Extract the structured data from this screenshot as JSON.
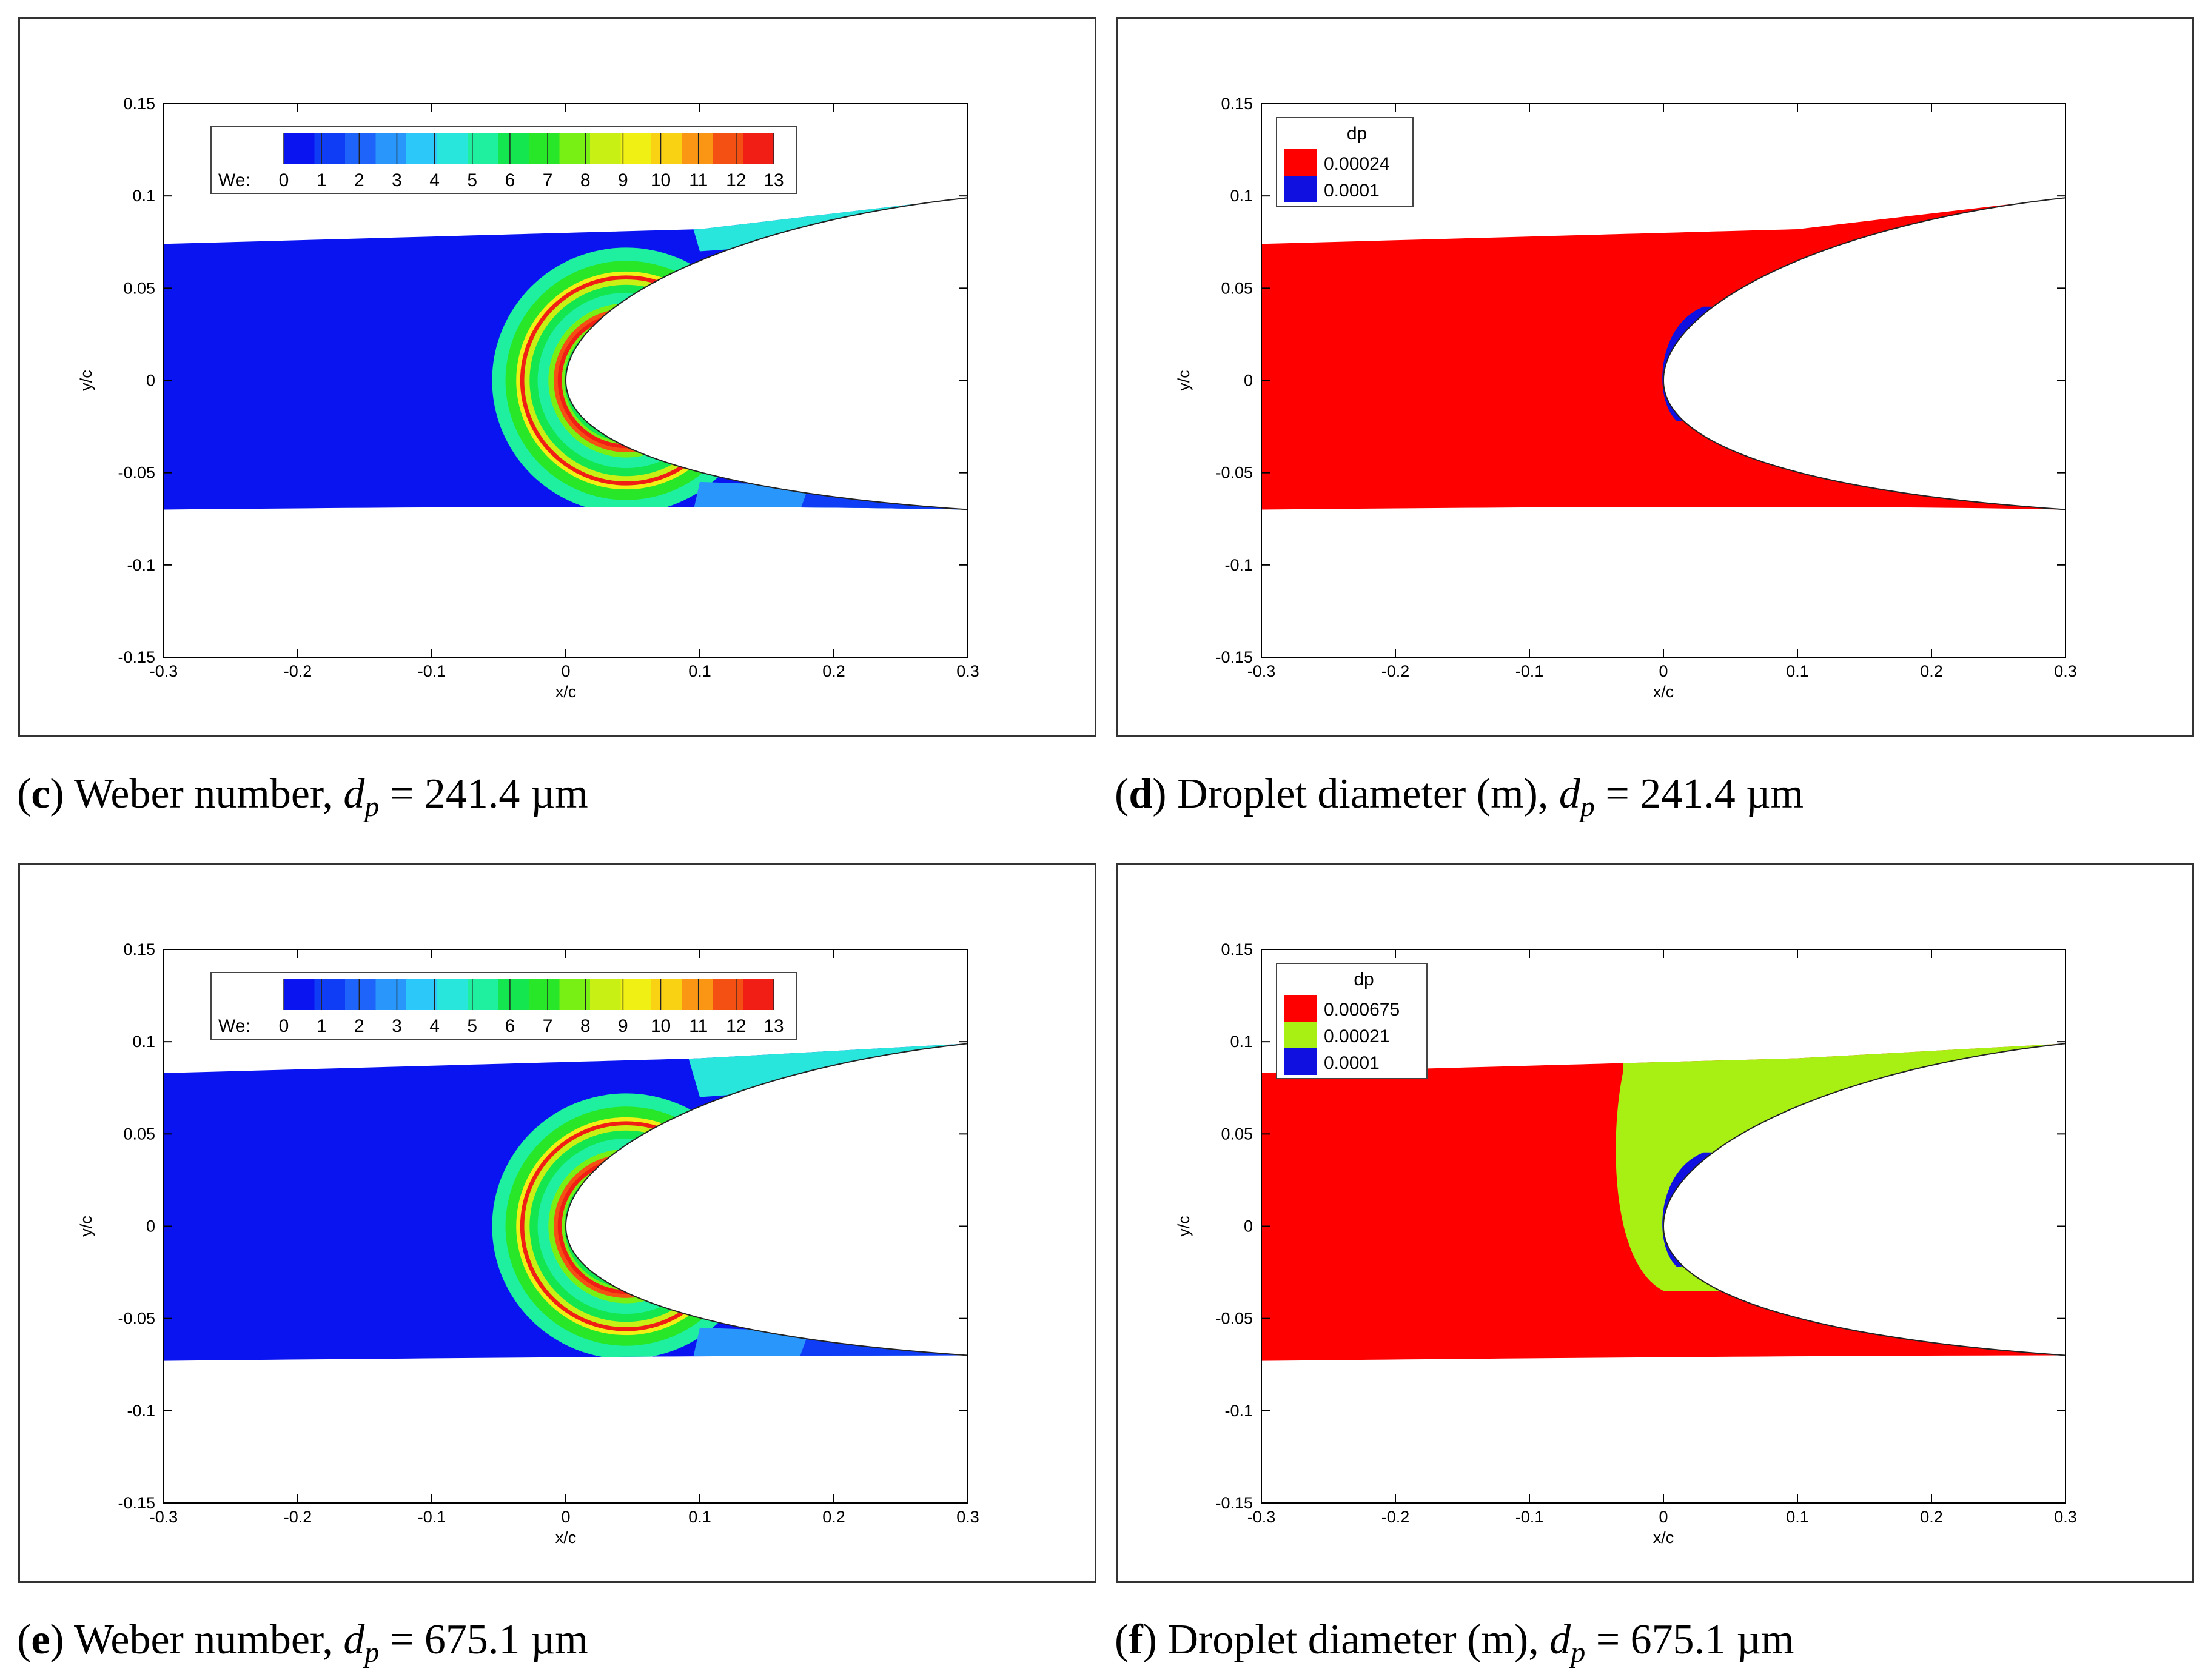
{
  "colors": {
    "frame": "#333333",
    "weber_scale": [
      "#0a14f0",
      "#0f3cf5",
      "#1e64fa",
      "#2896fa",
      "#2dc8fa",
      "#28e6dc",
      "#1ef0a0",
      "#14e650",
      "#28e628",
      "#78f014",
      "#c8f014",
      "#f0f014",
      "#fad214",
      "#fa9614",
      "#f55014",
      "#f01e14"
    ],
    "dp_red": "#ff0000",
    "dp_blue": "#1010e0",
    "dp_green": "#00ff00",
    "dp_lime": "#a8f014",
    "dp_cyan": "#14f0a0"
  },
  "captions": [
    {
      "letter": "c",
      "open": "(",
      "close": ")",
      "text": "Weber number,",
      "var": "d",
      "sub": "p",
      "value": "= 241.4 µm"
    },
    {
      "letter": "d",
      "open": "(",
      "close": ")",
      "text": "Droplet diameter (m),",
      "var": "d",
      "sub": "p",
      "value": "= 241.4 µm"
    },
    {
      "letter": "e",
      "open": "(",
      "close": ")",
      "text": "Weber number,",
      "var": "d",
      "sub": "p",
      "value": "= 675.1 µm"
    },
    {
      "letter": "f",
      "open": "(",
      "close": ")",
      "text": "Droplet diameter (m),",
      "var": "d",
      "sub": "p",
      "value": "= 675.1 µm"
    }
  ],
  "chart_data": [
    {
      "type": "heatmap",
      "panel": "c",
      "xlabel": "x/c",
      "ylabel": "y/c",
      "xlim": [
        -0.3,
        0.3
      ],
      "ylim": [
        -0.15,
        0.15
      ],
      "xticks": [
        "-0.3",
        "-0.2",
        "-0.1",
        "0",
        "0.1",
        "0.2",
        "0.3"
      ],
      "yticks": [
        "0.15",
        "0.1",
        "0.05",
        "0",
        "-0.05",
        "-0.1",
        "-0.15"
      ],
      "legend": {
        "title": "We:",
        "levels": [
          "0",
          "1",
          "2",
          "3",
          "4",
          "5",
          "6",
          "7",
          "8",
          "9",
          "10",
          "11",
          "12",
          "13"
        ]
      },
      "variable": "Weber number",
      "domain": {
        "x_start": -0.3,
        "top_y_at_start": 0.074,
        "bottom_y_at_start": -0.07
      },
      "airfoil": {
        "leading_edge_x": 0.0,
        "trailing_top": [
          0.3,
          0.099
        ],
        "trailing_bottom": [
          0.3,
          -0.07
        ]
      },
      "max_we_near_leading_edge": 13
    },
    {
      "type": "heatmap",
      "panel": "d",
      "xlabel": "x/c",
      "ylabel": "y/c",
      "xlim": [
        -0.3,
        0.3
      ],
      "ylim": [
        -0.15,
        0.15
      ],
      "xticks": [
        "-0.3",
        "-0.2",
        "-0.1",
        "0",
        "0.1",
        "0.2",
        "0.3"
      ],
      "yticks": [
        "0.15",
        "0.1",
        "0.05",
        "0",
        "-0.05",
        "-0.1",
        "-0.15"
      ],
      "legend": {
        "title": "dp",
        "entries": [
          {
            "label": "0.00024",
            "color": "#ff0000"
          },
          {
            "label": "0.0001",
            "color": "#1010e0"
          }
        ]
      },
      "regions": [
        {
          "value": 0.00024,
          "description": "main droplet field"
        },
        {
          "value": 0.0001,
          "description": "thin layer at leading edge"
        }
      ]
    },
    {
      "type": "heatmap",
      "panel": "e",
      "xlabel": "x/c",
      "ylabel": "y/c",
      "xlim": [
        -0.3,
        0.3
      ],
      "ylim": [
        -0.15,
        0.15
      ],
      "xticks": [
        "-0.3",
        "-0.2",
        "-0.1",
        "0",
        "0.1",
        "0.2",
        "0.3"
      ],
      "yticks": [
        "0.15",
        "0.1",
        "0.05",
        "0",
        "-0.05",
        "-0.1",
        "-0.15"
      ],
      "legend": {
        "title": "We:",
        "levels": [
          "0",
          "1",
          "2",
          "3",
          "4",
          "5",
          "6",
          "7",
          "8",
          "9",
          "10",
          "11",
          "12",
          "13"
        ]
      },
      "variable": "Weber number",
      "domain": {
        "x_start": -0.3,
        "top_y_at_start": 0.083,
        "bottom_y_at_start": -0.073
      },
      "airfoil": {
        "leading_edge_x": 0.0,
        "trailing_top": [
          0.3,
          0.099
        ],
        "trailing_bottom": [
          0.3,
          -0.07
        ]
      },
      "max_we_near_leading_edge": 13
    },
    {
      "type": "heatmap",
      "panel": "f",
      "xlabel": "x/c",
      "ylabel": "y/c",
      "xlim": [
        -0.3,
        0.3
      ],
      "ylim": [
        -0.15,
        0.15
      ],
      "xticks": [
        "-0.3",
        "-0.2",
        "-0.1",
        "0",
        "0.1",
        "0.2",
        "0.3"
      ],
      "yticks": [
        "0.15",
        "0.1",
        "0.05",
        "0",
        "-0.05",
        "-0.1",
        "-0.15"
      ],
      "legend": {
        "title": "dp",
        "entries": [
          {
            "label": "0.000675",
            "color": "#ff0000"
          },
          {
            "label": "0.00021",
            "color": "#a8f014"
          },
          {
            "label": "0.0001",
            "color": "#1010e0"
          }
        ]
      },
      "regions": [
        {
          "value": 0.000675,
          "description": "main droplet field"
        },
        {
          "value": 0.00021,
          "description": "crescent band around leading edge after breakup"
        },
        {
          "value": 0.0001,
          "description": "thin layer at leading edge"
        }
      ]
    }
  ]
}
